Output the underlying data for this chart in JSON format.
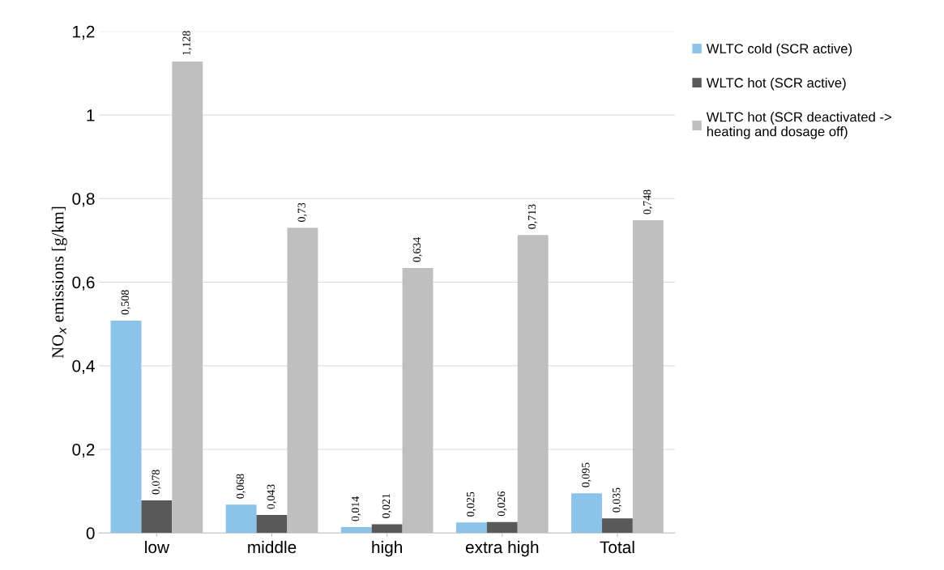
{
  "chart_data": {
    "type": "bar",
    "ylabel": "NO$_{x}$ emissions [g/km]",
    "categories": [
      "low",
      "middle",
      "high",
      "extra high",
      "Total"
    ],
    "series": [
      {
        "name": "WLTC cold (SCR active)",
        "color": "#8cc3e8",
        "values": [
          0.508,
          0.068,
          0.014,
          0.025,
          0.095
        ],
        "value_labels": [
          "0,508",
          "0,068",
          "0,014",
          "0,025",
          "0,095"
        ]
      },
      {
        "name": "WLTC hot (SCR active)",
        "color": "#595959",
        "values": [
          0.078,
          0.043,
          0.021,
          0.026,
          0.035
        ],
        "value_labels": [
          "0,078",
          "0,043",
          "0,021",
          "0,026",
          "0,035"
        ]
      },
      {
        "name": "WLTC hot (SCR deactivated -> heating and dosage off)",
        "color": "#bfbfbf",
        "values": [
          1.128,
          0.73,
          0.634,
          0.713,
          0.748
        ],
        "value_labels": [
          "1,128",
          "0,73",
          "0,634",
          "0,713",
          "0,748"
        ]
      }
    ],
    "ylim": [
      0,
      1.2
    ],
    "yticks": [
      0,
      {
        "value": 0.2,
        "label": "0,2"
      },
      {
        "value": 0.4,
        "label": "0,4"
      },
      {
        "value": 0.6,
        "label": "0,6"
      },
      {
        "value": 0.8,
        "label": "0,8"
      },
      1,
      {
        "value": 1.2,
        "label": "1,2"
      }
    ],
    "grid": "y",
    "legend": "right"
  }
}
